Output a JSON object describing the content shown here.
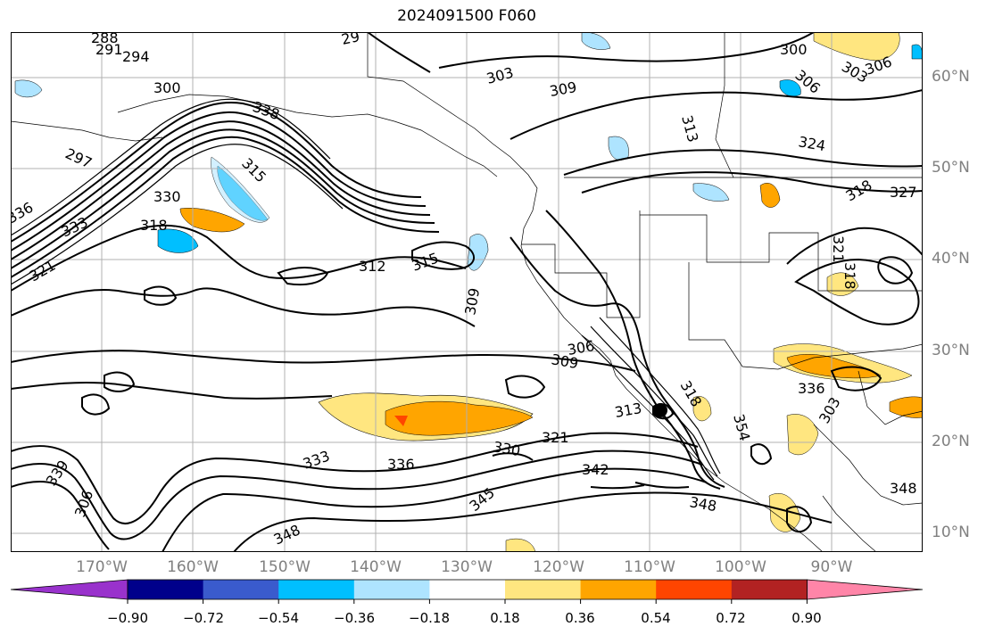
{
  "title": "2024091500 F060",
  "latitude_labels": [
    "60°N",
    "50°N",
    "40°N",
    "30°N",
    "20°N",
    "10°N"
  ],
  "longitude_labels": [
    "170°W",
    "160°W",
    "150°W",
    "140°W",
    "130°W",
    "120°W",
    "110°W",
    "100°W",
    "90°W"
  ],
  "contour_labels": [
    "288",
    "291",
    "294",
    "297",
    "300",
    "29",
    "303",
    "309",
    "313",
    "324",
    "327",
    "300",
    "303",
    "306",
    "306",
    "315",
    "330",
    "333",
    "318",
    "321",
    "312",
    "315",
    "309",
    "306",
    "309",
    "313",
    "318",
    "321",
    "318",
    "336",
    "333",
    "339",
    "336",
    "330",
    "342",
    "345",
    "348",
    "348",
    "354",
    "348",
    "321",
    "318",
    "303",
    "306",
    "336",
    "338"
  ],
  "colorbar": {
    "ticks": [
      "−0.90",
      "−0.72",
      "−0.54",
      "−0.36",
      "−0.18",
      "0.18",
      "0.36",
      "0.54",
      "0.72",
      "0.90"
    ],
    "colors": [
      "#9932cc",
      "#00008b",
      "#3a5bcd",
      "#00bfff",
      "#aee4ff",
      "#ffffff",
      "#ffe680",
      "#ffa500",
      "#ff4500",
      "#b22222",
      "#ff85a8"
    ]
  },
  "colors": {
    "contour": "#000000",
    "grid": "#b0b0b0",
    "axis_label": "#808080"
  }
}
